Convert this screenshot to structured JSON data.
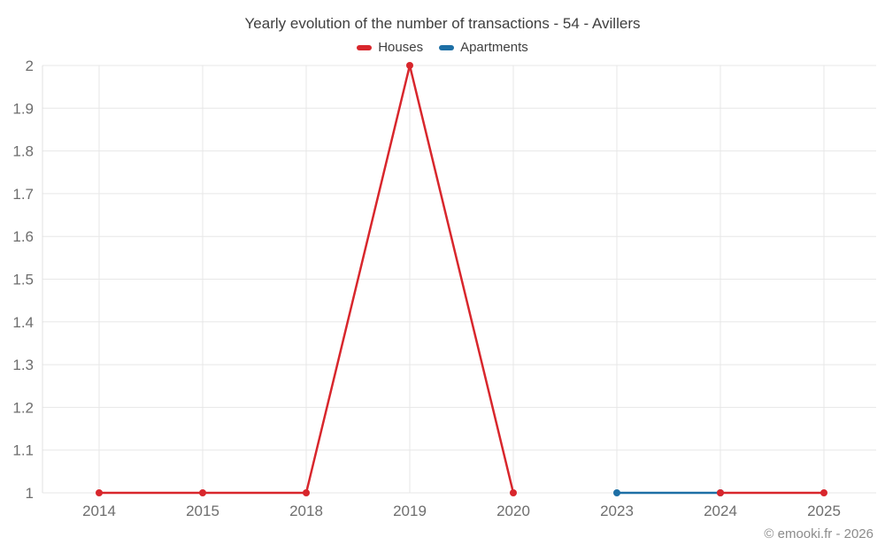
{
  "header": {
    "title": "Yearly evolution of the number of transactions - 54 - Avillers"
  },
  "legend": {
    "items": [
      {
        "label": "Houses",
        "color": "#d8262c"
      },
      {
        "label": "Apartments",
        "color": "#1d6fa5"
      }
    ]
  },
  "footer": {
    "credit": "© emooki.fr - 2026"
  },
  "colors": {
    "houses": "#d8262c",
    "apartments": "#1d6fa5",
    "grid": "#e7e7e7",
    "axis_line": "#e0e0e0",
    "tick_text": "#6e6e6e",
    "title_text": "#3f3f3f",
    "footer_text": "#8c8c8c"
  },
  "chart_data": {
    "type": "line",
    "title": "Yearly evolution of the number of transactions - 54 - Avillers",
    "categories": [
      "2014",
      "2015",
      "2018",
      "2019",
      "2020",
      "2023",
      "2024",
      "2025"
    ],
    "series": [
      {
        "name": "Houses",
        "color": "#d8262c",
        "values": [
          1,
          1,
          1,
          2,
          1,
          null,
          1,
          1
        ]
      },
      {
        "name": "Apartments",
        "color": "#1d6fa5",
        "values": [
          null,
          null,
          null,
          null,
          null,
          1,
          1,
          null
        ]
      }
    ],
    "xlabel": "",
    "ylabel": "",
    "ylim": [
      1,
      2
    ],
    "yticks": [
      "1",
      "1.1",
      "1.2",
      "1.3",
      "1.4",
      "1.5",
      "1.6",
      "1.7",
      "1.8",
      "1.9",
      "2"
    ],
    "grid": true,
    "legend_position": "top",
    "annotations": [
      "© emooki.fr - 2026"
    ]
  }
}
